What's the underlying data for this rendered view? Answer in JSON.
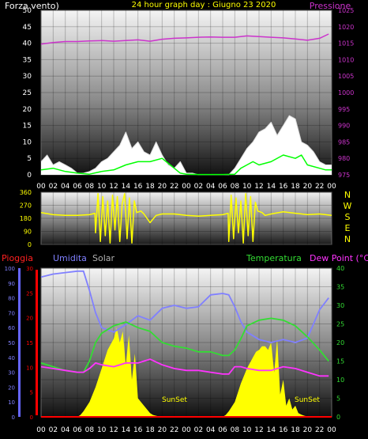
{
  "header": {
    "title": "24 hour graph day : Giugno 23 2020",
    "left_label": "Forza vento)",
    "right_label": "Pressione"
  },
  "colors": {
    "title": "#ffff00",
    "left_label": "#ffffff",
    "pressione": "#cc33cc",
    "wind_avg": "#00ff00",
    "wind_gust": "#ffffff",
    "wind_dir": "#ffff00",
    "direction_letters": "#ffff00",
    "pioggia": "#ff0000",
    "umidita": "#8080ff",
    "solar": "#c0c0c0",
    "temperatura": "#33dd33",
    "dew_point": "#ff33ff",
    "solar_fill": "#ffff00",
    "sunset": "#ffff00"
  },
  "hour_ticks": [
    "00",
    "02",
    "04",
    "06",
    "08",
    "10",
    "12",
    "14",
    "16",
    "18",
    "20",
    "22",
    "00",
    "02",
    "04",
    "06",
    "08",
    "10",
    "12",
    "14",
    "16",
    "18",
    "20",
    "22",
    "00"
  ],
  "chart_data": [
    {
      "type": "line",
      "name": "wind-pressure",
      "left_axis": {
        "ticks": [
          "50",
          "45",
          "40",
          "35",
          "30",
          "25",
          "20",
          "15",
          "10",
          "5",
          "0"
        ],
        "ylim": [
          0,
          50
        ]
      },
      "right_axis": {
        "ticks": [
          "1025",
          "1020",
          "1015",
          "1010",
          "1005",
          "1000",
          "995",
          "990",
          "985",
          "980",
          "975"
        ],
        "ylim": [
          975,
          1025
        ]
      },
      "x_hours": [
        0,
        48
      ],
      "pressure": {
        "x": [
          0,
          2,
          4,
          6,
          8,
          10,
          12,
          14,
          16,
          18,
          20,
          22,
          24,
          26,
          28,
          30,
          32,
          34,
          36,
          38,
          40,
          42,
          44,
          46,
          47.5
        ],
        "y": [
          1014.7,
          1015.2,
          1015.5,
          1015.5,
          1015.7,
          1015.8,
          1015.6,
          1015.8,
          1016.0,
          1015.6,
          1016.2,
          1016.5,
          1016.6,
          1016.8,
          1016.9,
          1016.8,
          1016.8,
          1017.2,
          1017.0,
          1016.8,
          1016.6,
          1016.3,
          1015.9,
          1016.5,
          1017.8
        ]
      },
      "gust": {
        "x": [
          0,
          1,
          2,
          3,
          4,
          5,
          6,
          7,
          8,
          9,
          10,
          11,
          12,
          13,
          14,
          15,
          16,
          17,
          18,
          19,
          20,
          21,
          22,
          23,
          24,
          25,
          26,
          27,
          28,
          29,
          30,
          31,
          32,
          33,
          34,
          35,
          36,
          37,
          38,
          39,
          40,
          41,
          42,
          43,
          44,
          45,
          46,
          47,
          48
        ],
        "y": [
          4,
          6,
          3,
          4,
          3,
          2,
          0.5,
          0.5,
          1,
          2,
          4,
          5,
          7,
          9,
          13,
          8,
          10,
          7,
          6,
          10,
          6,
          3,
          2,
          4,
          0.5,
          0.5,
          0,
          0,
          0,
          0,
          0,
          0,
          2,
          5,
          8,
          10,
          13,
          14,
          16,
          12,
          15,
          18,
          17,
          10,
          9,
          7,
          4,
          3,
          3
        ]
      },
      "wind_avg": {
        "x": [
          0,
          2,
          4,
          6,
          8,
          10,
          12,
          14,
          16,
          18,
          20,
          22,
          23,
          24,
          26,
          28,
          30,
          32,
          33,
          34,
          35,
          36,
          38,
          40,
          42,
          43,
          44,
          46,
          47,
          48
        ],
        "y": [
          1.5,
          2,
          1,
          0.5,
          0.2,
          1,
          1.5,
          3,
          4,
          4,
          5,
          2,
          0.5,
          0.2,
          0.1,
          0.1,
          0.1,
          0.2,
          2,
          3,
          4,
          3,
          4,
          6,
          5,
          6,
          3,
          2,
          1.5,
          1.5
        ]
      }
    },
    {
      "type": "line",
      "name": "wind-direction",
      "axis": {
        "ticks": [
          "360",
          "270",
          "180",
          "90",
          "0"
        ],
        "ylim": [
          0,
          360
        ]
      },
      "letters": [
        "N",
        "W",
        "S",
        "E",
        "N"
      ],
      "x_hours": [
        0,
        48
      ],
      "direction": {
        "x": [
          0,
          2,
          4,
          6,
          8,
          8.9,
          9,
          9.4,
          9.8,
          10.2,
          10.6,
          11,
          11.4,
          11.8,
          12.2,
          12.6,
          13,
          13.4,
          13.8,
          14.2,
          14.6,
          15,
          15.4,
          15.8,
          16.5,
          17,
          18,
          19,
          20,
          22,
          24,
          26,
          28,
          30,
          30.9,
          31,
          31.4,
          31.8,
          32.2,
          32.6,
          33,
          33.4,
          33.8,
          34.2,
          34.6,
          35,
          35.4,
          35.8,
          36.5,
          37,
          38,
          40,
          42,
          44,
          46,
          48
        ],
        "y": [
          220,
          205,
          200,
          200,
          205,
          215,
          80,
          350,
          20,
          330,
          60,
          300,
          10,
          340,
          100,
          330,
          20,
          280,
          350,
          40,
          320,
          10,
          300,
          220,
          230,
          210,
          150,
          200,
          210,
          210,
          200,
          195,
          200,
          205,
          215,
          20,
          340,
          40,
          320,
          80,
          300,
          10,
          350,
          60,
          330,
          20,
          290,
          230,
          220,
          200,
          210,
          225,
          215,
          205,
          210,
          200
        ]
      }
    },
    {
      "type": "line",
      "name": "rain-humidity-solar-temperature",
      "labels": {
        "pioggia": "Pioggia",
        "umidita": "Umidita",
        "solar": "Solar",
        "temperatura": "Temperatura",
        "dew_point": "Dew Point (°C)"
      },
      "pioggia_axis": {
        "ticks": [
          "30",
          "25",
          "20",
          "15",
          "10",
          "5",
          "0"
        ],
        "ylim": [
          0,
          30
        ]
      },
      "umidita_axis": {
        "ticks": [
          "100",
          "90",
          "80",
          "70",
          "60",
          "50",
          "40",
          "30",
          "20",
          "10",
          "0"
        ],
        "ylim": [
          0,
          100
        ]
      },
      "temp_axis": {
        "ticks": [
          "40",
          "35",
          "30",
          "25",
          "20",
          "15",
          "10",
          "5",
          "0"
        ],
        "ylim": [
          0,
          40
        ]
      },
      "sunset_label": "SunSet",
      "x_hours": [
        0,
        48
      ],
      "humidity": {
        "x": [
          0,
          2,
          4,
          6,
          7,
          8,
          9,
          10,
          12,
          14,
          16,
          18,
          20,
          22,
          24,
          26,
          28,
          30,
          31,
          32,
          33,
          34,
          36,
          38,
          40,
          42,
          44,
          46,
          47.5
        ],
        "y": [
          94,
          96,
          97,
          98,
          98,
          85,
          70,
          60,
          57,
          62,
          68,
          65,
          73,
          75,
          73,
          74,
          82,
          83,
          82,
          74,
          64,
          57,
          52,
          50,
          52,
          50,
          53,
          72,
          80
        ]
      },
      "temperatura": {
        "x": [
          0,
          2,
          4,
          6,
          7,
          8,
          9,
          10,
          12,
          14,
          16,
          18,
          20,
          22,
          24,
          26,
          28,
          30,
          31,
          32,
          33,
          34,
          36,
          38,
          40,
          42,
          44,
          46,
          47.5
        ],
        "y": [
          14.5,
          13.5,
          12.5,
          12,
          12,
          15,
          20,
          22.5,
          24.5,
          25.5,
          24,
          23,
          20,
          19,
          18.5,
          17.5,
          17.5,
          16.5,
          16.5,
          18,
          21,
          24.5,
          26,
          26.5,
          26,
          24.5,
          21.5,
          18,
          15
        ]
      },
      "dew_point": {
        "x": [
          0,
          2,
          4,
          6,
          7,
          8,
          9,
          10,
          12,
          14,
          16,
          18,
          20,
          22,
          24,
          26,
          28,
          30,
          31,
          32,
          33,
          34,
          36,
          38,
          40,
          42,
          44,
          46,
          47.5
        ],
        "y": [
          13.5,
          13,
          12.5,
          12,
          12,
          13,
          14.5,
          14,
          13.5,
          14.5,
          14.5,
          15.5,
          14,
          13,
          12.5,
          12.5,
          12,
          11.5,
          11.5,
          13.5,
          13.5,
          13,
          12.5,
          12.5,
          13.5,
          13,
          12,
          11,
          11
        ]
      },
      "solar": {
        "x": [
          0,
          6,
          6.5,
          7,
          8,
          9,
          10,
          11,
          12,
          12.5,
          13,
          13.5,
          14,
          14.5,
          15,
          15.5,
          16,
          16.5,
          17,
          17.5,
          18,
          18.5,
          19,
          19.5,
          20,
          24,
          30,
          30.5,
          31,
          32,
          33,
          34,
          35,
          35.5,
          36,
          36.5,
          37,
          37.5,
          38,
          38.5,
          39,
          39.5,
          40,
          40.5,
          41,
          41.5,
          42,
          42.5,
          43,
          43.5,
          44,
          48
        ],
        "y": [
          0,
          0,
          0.5,
          1.5,
          4,
          8,
          13,
          18,
          21,
          24,
          20,
          23,
          14,
          22,
          10,
          17,
          5,
          4,
          3,
          2,
          1,
          0.5,
          0.3,
          0.1,
          0,
          0,
          0,
          0.5,
          1.5,
          4,
          9,
          13,
          16,
          17.5,
          18,
          19,
          19,
          18,
          20,
          12,
          21,
          6,
          10,
          3,
          5,
          2,
          3,
          1,
          0.6,
          0.3,
          0.1,
          0
        ]
      },
      "pioggia": {
        "x": [
          0,
          48
        ],
        "y": [
          0,
          0
        ]
      }
    }
  ]
}
